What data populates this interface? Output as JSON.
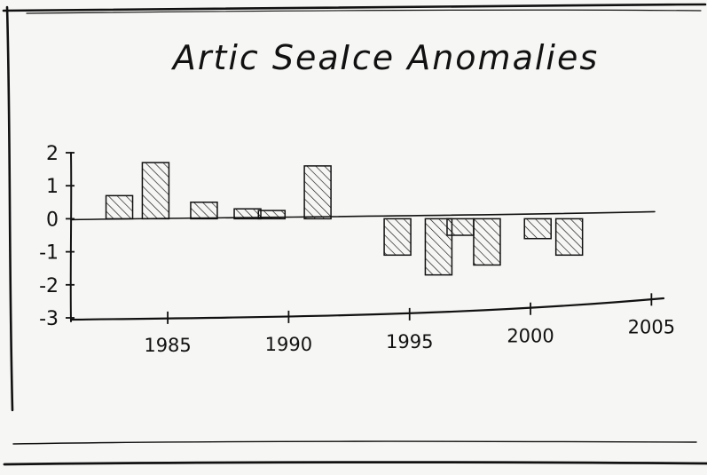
{
  "chart_data": {
    "type": "bar",
    "title": "Artic SeaIce Anomalies",
    "xlabel": "",
    "ylabel": "",
    "x": [
      1983,
      1984.5,
      1986.5,
      1988.3,
      1989.3,
      1991.2,
      1994.5,
      1996.2,
      1997.1,
      1998.2,
      2000.3,
      2001.6
    ],
    "values": [
      0.7,
      1.7,
      0.5,
      0.3,
      0.25,
      1.6,
      -1.1,
      -1.7,
      -0.5,
      -1.4,
      -0.6,
      -1.1
    ],
    "xticks": [
      "1985",
      "1990",
      "1995",
      "2000",
      "2005"
    ],
    "xtick_values": [
      1985,
      1990,
      1995,
      2000,
      2005
    ],
    "yticks": [
      "2",
      "1",
      "0",
      "-1",
      "-2",
      "-3"
    ],
    "ytick_values": [
      2,
      1,
      0,
      -1,
      -2,
      -3
    ],
    "xlim": [
      1981,
      2005.5
    ],
    "ylim": [
      -3,
      2
    ],
    "grid": false,
    "legend": "none",
    "colors": {
      "ink": "#111111",
      "paper": "#f6f6f4"
    }
  }
}
